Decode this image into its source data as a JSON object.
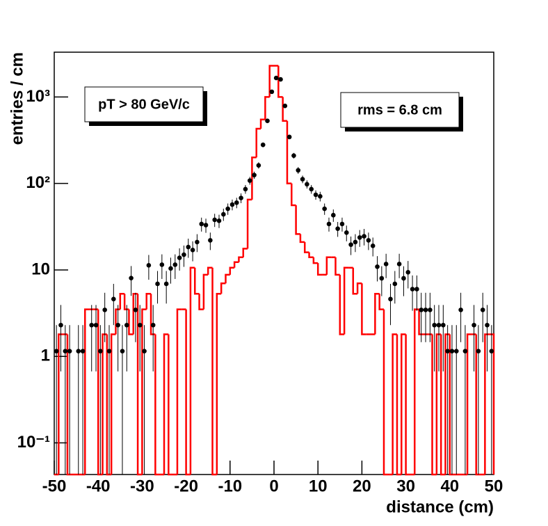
{
  "chart_data": {
    "type": "histogram",
    "xlabel": "distance (cm)",
    "ylabel": "entries / cm",
    "annotations": [
      "pT > 80 GeV/c",
      "rms = 6.8 cm"
    ],
    "xlim": [
      -50,
      50
    ],
    "xticks": [
      -50,
      -40,
      -30,
      -20,
      -10,
      0,
      10,
      20,
      30,
      40,
      50
    ],
    "ylim": [
      0.043,
      3300
    ],
    "log_y": true,
    "yticks": [
      {
        "value": 0.1,
        "label": "10⁻¹"
      },
      1,
      10,
      {
        "value": 100,
        "label": "10²"
      },
      {
        "value": 1000,
        "label": "10³"
      }
    ],
    "bins": [
      -50,
      -49,
      -48,
      -47,
      -46,
      -45,
      -44,
      -43,
      -42,
      -41,
      -40,
      -39,
      -38,
      -37,
      -36,
      -35,
      -34,
      -33,
      -32,
      -31,
      -30,
      -29,
      -28,
      -27,
      -26,
      -25,
      -24,
      -23,
      -22,
      -21,
      -20,
      -19,
      -18,
      -17,
      -16,
      -15,
      -14,
      -13,
      -12,
      -11,
      -10,
      -9,
      -8,
      -7,
      -6,
      -5,
      -4,
      -3,
      -2,
      -1,
      0,
      1,
      2,
      3,
      4,
      5,
      6,
      7,
      8,
      9,
      10,
      11,
      12,
      13,
      14,
      15,
      16,
      17,
      18,
      19,
      20,
      21,
      22,
      23,
      24,
      25,
      26,
      27,
      28,
      29,
      30,
      31,
      32,
      33,
      34,
      35,
      36,
      37,
      38,
      39,
      40,
      41,
      42,
      43,
      44,
      45,
      46,
      47,
      48,
      49,
      50
    ],
    "histogram": {
      "color": "#ff0000",
      "values": [
        0,
        1.8,
        1.8,
        0,
        0,
        0,
        0,
        3.5,
        3.5,
        3.5,
        0,
        1.8,
        0,
        1.8,
        3.5,
        5.3,
        3.5,
        1.8,
        5.3,
        0,
        3.5,
        5.3,
        1.8,
        0,
        0,
        1.8,
        0,
        0,
        3.5,
        3.5,
        0,
        10.6,
        5.3,
        3.5,
        8.8,
        10.6,
        0,
        5.3,
        7,
        8.8,
        10.6,
        12.3,
        14,
        17.6,
        65,
        200,
        430,
        550,
        1000,
        2300,
        2300,
        1000,
        530,
        100,
        56,
        26,
        21,
        16,
        14,
        12,
        8.8,
        8.8,
        14,
        14,
        8.8,
        1.8,
        10.6,
        10.6,
        5.3,
        7,
        1.8,
        1.8,
        1.8,
        5.3,
        3.5,
        0,
        0,
        1.8,
        0,
        1.8,
        0,
        0,
        3.5,
        1.8,
        1.8,
        1.8,
        0,
        1.8,
        0,
        1.8,
        0,
        0,
        0,
        0,
        1.8,
        1.8,
        0,
        0,
        1.8,
        1.8
      ]
    },
    "points": {
      "color": "#000000",
      "values": [
        1.15,
        2.3,
        1.15,
        1.15,
        null,
        1.15,
        1.15,
        null,
        2.3,
        2.3,
        1.15,
        3.45,
        1.15,
        4.6,
        2.3,
        1.15,
        2.3,
        8.05,
        3.45,
        2.3,
        1.15,
        11.3,
        2.3,
        6.9,
        11.5,
        6.9,
        10.4,
        11.5,
        13.8,
        15,
        18.4,
        17,
        21,
        34,
        33,
        22,
        38,
        37,
        44,
        51,
        57,
        60,
        68,
        86,
        108,
        125,
        162,
        280,
        530,
        1150,
        1660,
        1600,
        790,
        345,
        210,
        142,
        112,
        98,
        86,
        74,
        71,
        51,
        34,
        43,
        30,
        34,
        27,
        19.6,
        21,
        23.7,
        24.5,
        22,
        19,
        10.9,
        8,
        11.7,
        4.6,
        6.9,
        11.7,
        8,
        9.4,
        6,
        6,
        3.45,
        3.45,
        3.45,
        2.3,
        2.3,
        2.3,
        1.15,
        1.15,
        1.15,
        3.45,
        1.15,
        null,
        2.3,
        1.15,
        3.45,
        2.3,
        1.15
      ],
      "errors": [
        1.15,
        1.63,
        1.15,
        1.15,
        null,
        1.15,
        1.15,
        null,
        1.63,
        1.63,
        1.15,
        1.99,
        1.15,
        2.3,
        1.63,
        1.15,
        1.63,
        3.04,
        1.99,
        1.63,
        1.15,
        3.6,
        1.63,
        2.82,
        3.64,
        2.82,
        3.46,
        3.64,
        3.98,
        4.15,
        4.6,
        4.42,
        4.91,
        6.25,
        6.16,
        5.03,
        6.61,
        6.52,
        7.11,
        7.66,
        8.1,
        8.31,
        8.84,
        9.94,
        11.1,
        12,
        13.6,
        17.9,
        24.7,
        36.4,
        43.7,
        42.9,
        30.1,
        19.9,
        15.5,
        12.8,
        11.3,
        10.6,
        9.94,
        9.2,
        9.04,
        7.66,
        6.25,
        7.03,
        5.87,
        6.25,
        5.57,
        4.75,
        4.91,
        5.22,
        5.31,
        5.03,
        4.67,
        3.54,
        3.03,
        3.67,
        2.3,
        2.82,
        3.67,
        3.03,
        3.29,
        2.63,
        2.63,
        1.99,
        1.99,
        1.99,
        1.63,
        1.63,
        1.63,
        1.15,
        1.15,
        1.15,
        1.99,
        1.15,
        null,
        1.63,
        1.15,
        1.99,
        1.63,
        1.15
      ]
    }
  }
}
